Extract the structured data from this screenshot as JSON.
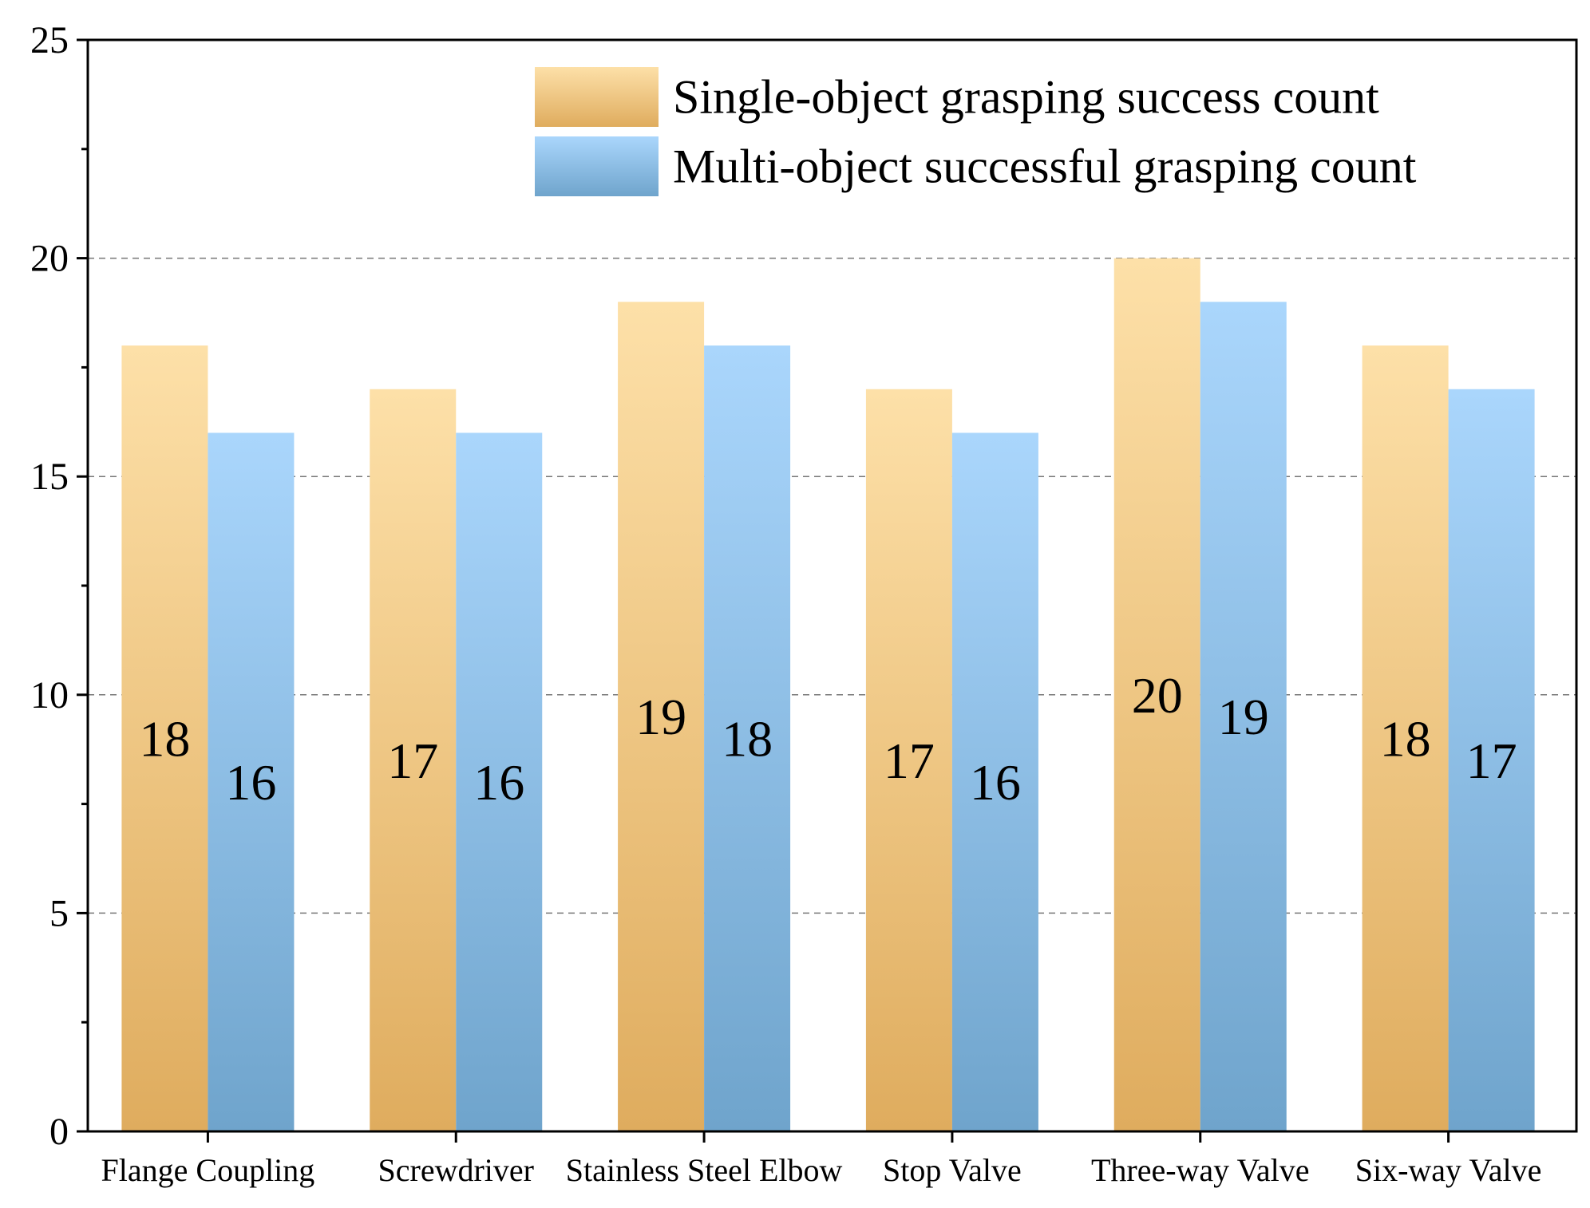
{
  "chart_data": {
    "type": "bar",
    "title": "",
    "xlabel": "",
    "ylabel": "",
    "ylim": [
      0,
      25
    ],
    "yticks": [
      0,
      5,
      10,
      15,
      20,
      25
    ],
    "grid": "dashed horizontal at major ticks",
    "legend_position": "top-right",
    "categories": [
      "Flange Coupling",
      "Screwdriver",
      "Stainless Steel Elbow",
      "Stop Valve",
      "Three-way Valve",
      "Six-way Valve"
    ],
    "series": [
      {
        "name": "Single-object grasping success count",
        "values": [
          18,
          17,
          19,
          17,
          20,
          18
        ],
        "color_top": "#fde0a8",
        "color_bottom": "#dfac5e"
      },
      {
        "name": "Multi-object successful grasping count",
        "values": [
          16,
          16,
          18,
          16,
          19,
          17
        ],
        "color_top": "#aad6fc",
        "color_bottom": "#6fa4cc"
      }
    ]
  }
}
